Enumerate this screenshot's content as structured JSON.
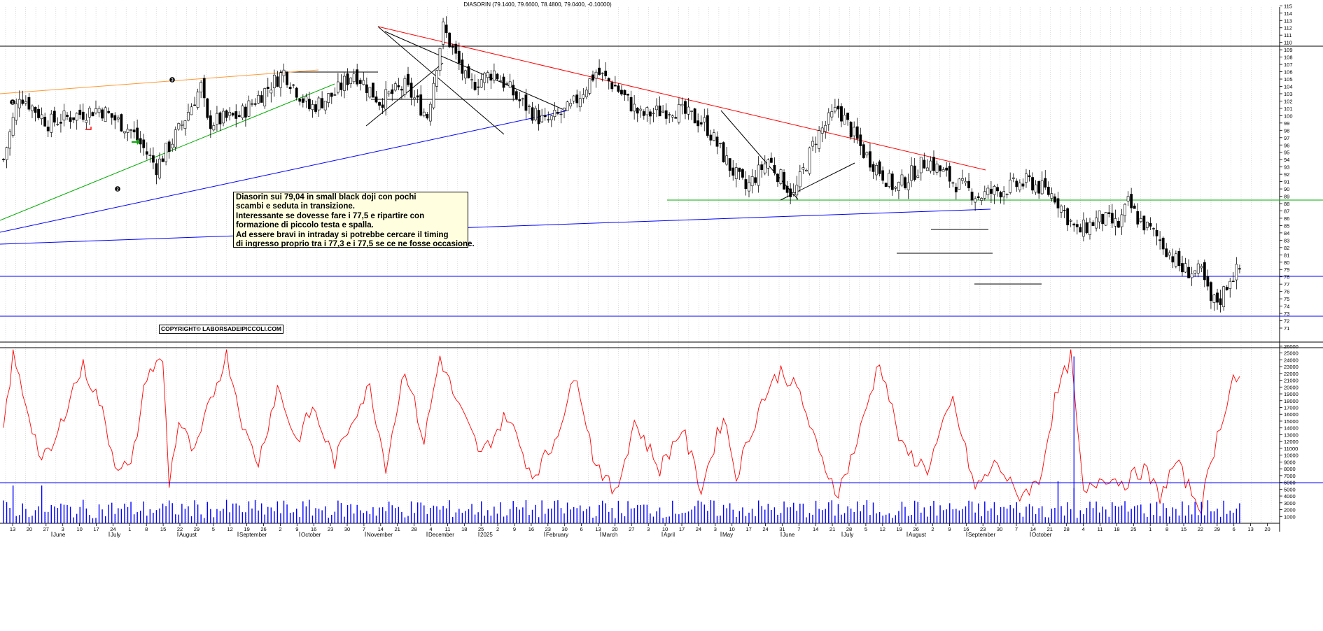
{
  "title": "DIASORIN (79.1400, 79.6600, 78.4800, 79.0400, -0.10000)",
  "annotation_lines": [
    "Diasorin sui 79,04 in small black doji con pochi",
    "scambi e seduta in transizione.",
    "Interessante se dovesse fare i 77,5 e ripartire con",
    "formazione di piccolo testa e spalla.",
    "Ad essere bravi in intraday si potrebbe cercare il timing",
    "di ingresso proprio tra i 77,3 e i 77,5 se ce ne fosse occasione."
  ],
  "copyright": "COPYRIGHT© LABORSADEIPICCOLI.COM",
  "wave_labels": [
    "1",
    "2",
    "3"
  ],
  "colors": {
    "price": "#000000",
    "oscillator": "#ff0000",
    "volume": "#0000ff",
    "resistance": "#ff0000",
    "support": "#0000ff",
    "neckline": "#00aa00",
    "upper": "#ff9933"
  },
  "chart_data": [
    {
      "type": "candlestick",
      "title": "DIASORIN (79.1400, 79.6600, 78.4800, 79.0400, -0.10000)",
      "ylim": [
        70,
        116
      ],
      "y_ticks": [
        71,
        72,
        73,
        74,
        75,
        76,
        77,
        78,
        79,
        80,
        81,
        82,
        83,
        84,
        85,
        86,
        87,
        88,
        89,
        90,
        91,
        92,
        93,
        94,
        95,
        96,
        97,
        98,
        99,
        100,
        101,
        102,
        103,
        104,
        105,
        106,
        107,
        108,
        109,
        110,
        111,
        112,
        113,
        114,
        115
      ],
      "date_ticks": [
        "13",
        "20",
        "27",
        "3",
        "10",
        "17",
        "24",
        "1",
        "8",
        "15",
        "22",
        "29",
        "5",
        "12",
        "19",
        "26",
        "2",
        "9",
        "16",
        "23",
        "30",
        "7",
        "14",
        "21",
        "28",
        "4",
        "11",
        "18",
        "25",
        "2",
        "9",
        "16",
        "23",
        "30",
        "6",
        "13",
        "20",
        "27",
        "3",
        "10",
        "17",
        "24",
        "3",
        "10",
        "17",
        "24",
        "31",
        "7",
        "14",
        "21",
        "28",
        "5",
        "12",
        "19",
        "26",
        "2",
        "9",
        "16",
        "23",
        "30",
        "7",
        "14",
        "21",
        "28",
        "4",
        "11",
        "18",
        "25",
        "1",
        "8",
        "15",
        "22",
        "29",
        "6",
        "13",
        "20"
      ],
      "months": [
        "June",
        "July",
        "August",
        "September",
        "October",
        "November",
        "December",
        "2025",
        "February",
        "March",
        "April",
        "May",
        "June",
        "July",
        "August",
        "September",
        "October"
      ],
      "horizontal_levels": [
        110,
        89,
        78.8,
        77.5,
        73.4,
        82,
        85
      ],
      "last": {
        "open": 79.14,
        "high": 79.66,
        "low": 78.48,
        "close": 79.04,
        "change": -0.1
      },
      "closes_anchor": [
        [
          0,
          94
        ],
        [
          5,
          103
        ],
        [
          14,
          99
        ],
        [
          30,
          101
        ],
        [
          40,
          98
        ],
        [
          48,
          93
        ],
        [
          55,
          98
        ],
        [
          62,
          104
        ],
        [
          64,
          99
        ],
        [
          74,
          100
        ],
        [
          88,
          106
        ],
        [
          96,
          101
        ],
        [
          104,
          103
        ],
        [
          110,
          106
        ],
        [
          118,
          102
        ],
        [
          126,
          104
        ],
        [
          133,
          100
        ],
        [
          138,
          112
        ],
        [
          146,
          104
        ],
        [
          154,
          106
        ],
        [
          162,
          102
        ],
        [
          170,
          99
        ],
        [
          178,
          101
        ],
        [
          186,
          106
        ],
        [
          192,
          104
        ],
        [
          200,
          100
        ],
        [
          210,
          101
        ],
        [
          220,
          99
        ],
        [
          228,
          93
        ],
        [
          233,
          90
        ],
        [
          240,
          94
        ],
        [
          248,
          89
        ],
        [
          255,
          97
        ],
        [
          262,
          101
        ],
        [
          270,
          95
        ],
        [
          280,
          90
        ],
        [
          290,
          94
        ],
        [
          298,
          91
        ],
        [
          306,
          89
        ],
        [
          314,
          90
        ],
        [
          322,
          91
        ],
        [
          330,
          89
        ],
        [
          337,
          84
        ],
        [
          344,
          86
        ],
        [
          350,
          85
        ],
        [
          353,
          88
        ],
        [
          356,
          86
        ],
        [
          363,
          83
        ],
        [
          370,
          79
        ],
        [
          376,
          78.5
        ],
        [
          379,
          74.5
        ],
        [
          382,
          75
        ],
        [
          385,
          78
        ],
        [
          388,
          79.04
        ]
      ]
    },
    {
      "type": "line",
      "name": "",
      "ylim": [
        0,
        26500
      ],
      "y_ticks": [
        1000,
        2000,
        3000,
        4000,
        5000,
        6000,
        7000,
        8000,
        9000,
        10000,
        11000,
        12000,
        13000,
        14000,
        15000,
        16000,
        17000,
        18000,
        19000,
        20000,
        21000,
        22000,
        23000,
        24000,
        25000,
        26000
      ],
      "anchors": [
        [
          0,
          14000
        ],
        [
          3,
          24500
        ],
        [
          8,
          16000
        ],
        [
          12,
          9000
        ],
        [
          16,
          11500
        ],
        [
          21,
          19000
        ],
        [
          25,
          23000
        ],
        [
          30,
          18000
        ],
        [
          35,
          9000
        ],
        [
          40,
          8000
        ],
        [
          45,
          22000
        ],
        [
          50,
          24000
        ],
        [
          52,
          6000
        ],
        [
          55,
          15000
        ],
        [
          60,
          10000
        ],
        [
          65,
          18000
        ],
        [
          70,
          24800
        ],
        [
          76,
          13000
        ],
        [
          80,
          9000
        ],
        [
          86,
          20000
        ],
        [
          92,
          12000
        ],
        [
          97,
          17000
        ],
        [
          104,
          9000
        ],
        [
          110,
          16000
        ],
        [
          115,
          20000
        ],
        [
          120,
          8500
        ],
        [
          126,
          23000
        ],
        [
          132,
          12000
        ],
        [
          137,
          24500
        ],
        [
          142,
          18000
        ],
        [
          150,
          10000
        ],
        [
          158,
          16000
        ],
        [
          166,
          7000
        ],
        [
          172,
          11000
        ],
        [
          180,
          22000
        ],
        [
          185,
          10000
        ],
        [
          192,
          4000
        ],
        [
          198,
          15000
        ],
        [
          206,
          8000
        ],
        [
          213,
          14000
        ],
        [
          219,
          5000
        ],
        [
          226,
          16000
        ],
        [
          230,
          7000
        ],
        [
          238,
          18000
        ],
        [
          244,
          22500
        ],
        [
          250,
          19000
        ],
        [
          256,
          10000
        ],
        [
          262,
          4500
        ],
        [
          268,
          12000
        ],
        [
          275,
          24000
        ],
        [
          282,
          11000
        ],
        [
          290,
          8000
        ],
        [
          298,
          18000
        ],
        [
          305,
          5000
        ],
        [
          312,
          9000
        ],
        [
          318,
          4000
        ],
        [
          325,
          6000
        ],
        [
          330,
          18000
        ],
        [
          335,
          24500
        ],
        [
          339,
          4000
        ],
        [
          345,
          7000
        ],
        [
          352,
          6000
        ],
        [
          358,
          8000
        ],
        [
          363,
          4000
        ],
        [
          368,
          9000
        ],
        [
          373,
          4500
        ],
        [
          376,
          2500
        ],
        [
          380,
          11000
        ],
        [
          384,
          18000
        ],
        [
          386,
          21500
        ],
        [
          388,
          20800
        ]
      ],
      "volume_ylim": [
        0,
        5000
      ]
    }
  ]
}
